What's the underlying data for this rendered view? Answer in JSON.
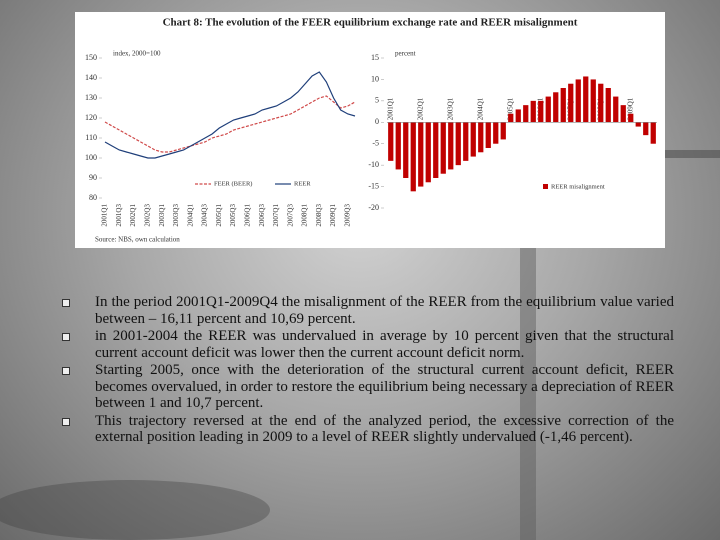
{
  "figure": {
    "title": "Chart 8: The evolution of the FEER equilibrium exchange rate and REER misalignment",
    "source": "Source: NBS, own calculation"
  },
  "chart_data": [
    {
      "type": "line",
      "y_label": "index, 2000=100",
      "categories": [
        "2001Q1",
        null,
        "2001Q3",
        null,
        "2002Q1",
        null,
        "2002Q3",
        null,
        "2003Q1",
        null,
        "2003Q3",
        null,
        "2004Q1",
        null,
        "2004Q3",
        null,
        "2005Q1",
        null,
        "2005Q3",
        null,
        "2006Q1",
        null,
        "2006Q3",
        null,
        "2007Q1",
        null,
        "2007Q3",
        null,
        "2008Q1",
        null,
        "2008Q3",
        null,
        "2009Q1",
        null,
        "2009Q3",
        null
      ],
      "series": [
        {
          "name": "FEER (BEER)",
          "color": "#d04a4a",
          "dashed": true,
          "values": [
            118,
            116,
            114,
            112,
            110,
            108,
            106,
            104,
            103,
            103,
            104,
            105,
            106,
            107,
            108,
            110,
            111,
            112,
            114,
            115,
            116,
            117,
            118,
            119,
            120,
            121,
            122,
            124,
            126,
            128,
            130,
            131,
            128,
            125,
            126,
            128
          ]
        },
        {
          "name": "REER",
          "color": "#1f3f7a",
          "dashed": false,
          "values": [
            108,
            106,
            104,
            103,
            102,
            101,
            100,
            100,
            101,
            102,
            103,
            104,
            106,
            108,
            110,
            112,
            115,
            117,
            119,
            120,
            121,
            122,
            124,
            125,
            126,
            128,
            130,
            133,
            137,
            141,
            143,
            138,
            130,
            124,
            122,
            121
          ]
        }
      ],
      "ylim": [
        80,
        150
      ],
      "yticks": [
        80,
        90,
        100,
        110,
        120,
        130,
        140,
        150
      ]
    },
    {
      "type": "bar",
      "y_label": "percent",
      "categories": [
        "2001Q1",
        null,
        null,
        null,
        "2002Q1",
        null,
        null,
        null,
        "2003Q1",
        null,
        null,
        null,
        "2004Q1",
        null,
        null,
        null,
        "2005Q1",
        null,
        null,
        null,
        "2006Q1",
        null,
        null,
        null,
        "2007Q1",
        null,
        null,
        null,
        "2008Q1",
        null,
        null,
        null,
        "2009Q1",
        null,
        null,
        null
      ],
      "series": [
        {
          "name": "REER misalignment",
          "color": "#c00000",
          "values": [
            -9,
            -11,
            -13,
            -16.11,
            -15,
            -14,
            -13,
            -12,
            -11,
            -10,
            -9,
            -8,
            -7,
            -6,
            -5,
            -4,
            2,
            3,
            4,
            5,
            5,
            6,
            7,
            8,
            9,
            10,
            10.69,
            10,
            9,
            8,
            6,
            4,
            2,
            -1,
            -3,
            -5
          ]
        }
      ],
      "ylim": [
        -20,
        15
      ],
      "yticks": [
        -20,
        -15,
        -10,
        -5,
        0,
        5,
        10,
        15
      ]
    }
  ],
  "bullets": [
    "In the period 2001Q1-2009Q4 the misalignment of the REER from the equilibrium value varied between – 16,11 percent and 10,69 percent.",
    "in 2001-2004 the REER was undervalued in average by 10 percent given that the structural current account deficit was lower then the current account deficit norm.",
    "Starting 2005, once with the deterioration of the structural current account deficit, REER becomes overvalued, in order to restore the equilibrium being necessary a depreciation of REER between 1 and 10,7 percent.",
    "This trajectory reversed at the end of the analyzed period, the excessive correction of the external position leading in 2009 to a level of REER slightly undervalued (-1,46 percent)."
  ]
}
